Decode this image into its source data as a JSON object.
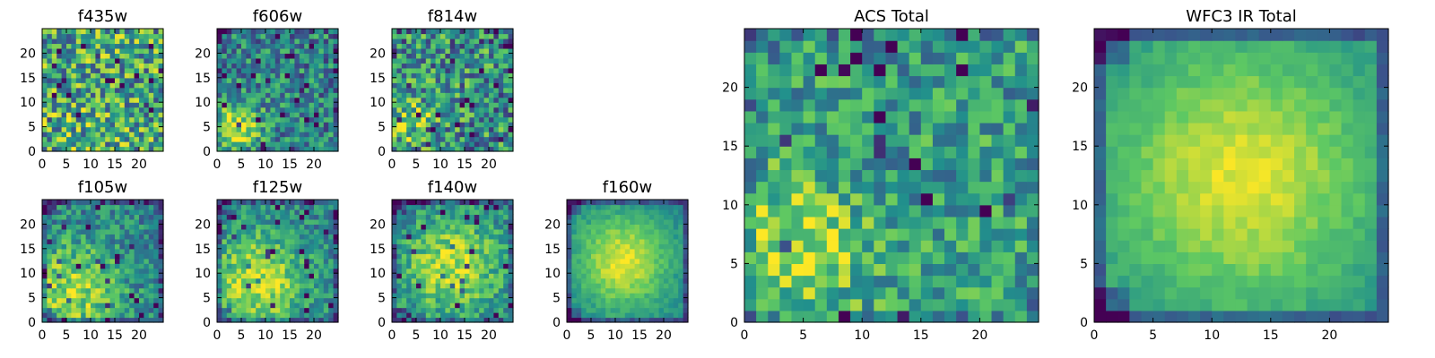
{
  "colormap": "viridis",
  "colors": {
    "viridis_stops": [
      "#440154",
      "#3b528b",
      "#21908c",
      "#5dc863",
      "#fde725"
    ]
  },
  "chart_data": [
    {
      "type": "heatmap",
      "title": "f435w",
      "grid_size": 25,
      "xticks": [
        0,
        5,
        10,
        15,
        20
      ],
      "yticks": [
        0,
        5,
        10,
        15,
        20
      ],
      "xlim": [
        0,
        25
      ],
      "ylim": [
        0,
        25
      ],
      "pattern": {
        "base": 0.6,
        "noise": 0.38,
        "peak_x": 5,
        "peak_y": 6,
        "peak_amp": 0.05,
        "peak_sigma": 5,
        "corner_dark": 0.0
      }
    },
    {
      "type": "heatmap",
      "title": "f606w",
      "grid_size": 25,
      "xticks": [
        0,
        5,
        10,
        15,
        20
      ],
      "yticks": [
        0,
        5,
        10,
        15,
        20
      ],
      "xlim": [
        0,
        25
      ],
      "ylim": [
        0,
        25
      ],
      "pattern": {
        "base": 0.45,
        "noise": 0.28,
        "peak_x": 3,
        "peak_y": 4,
        "peak_amp": 0.45,
        "peak_sigma": 4,
        "corner_dark": 0.2
      }
    },
    {
      "type": "heatmap",
      "title": "f814w",
      "grid_size": 25,
      "xticks": [
        0,
        5,
        10,
        15,
        20
      ],
      "yticks": [
        0,
        5,
        10,
        15,
        20
      ],
      "xlim": [
        0,
        25
      ],
      "ylim": [
        0,
        25
      ],
      "pattern": {
        "base": 0.5,
        "noise": 0.35,
        "peak_x": 3,
        "peak_y": 5,
        "peak_amp": 0.3,
        "peak_sigma": 4,
        "corner_dark": 0.1
      }
    },
    {
      "type": "heatmap",
      "title": "f105w",
      "grid_size": 25,
      "xticks": [
        0,
        5,
        10,
        15,
        20
      ],
      "yticks": [
        0,
        5,
        10,
        15,
        20
      ],
      "xlim": [
        0,
        25
      ],
      "ylim": [
        0,
        25
      ],
      "pattern": {
        "base": 0.45,
        "noise": 0.22,
        "peak_x": 6,
        "peak_y": 6,
        "peak_amp": 0.4,
        "peak_sigma": 7,
        "corner_dark": 0.35
      }
    },
    {
      "type": "heatmap",
      "title": "f125w",
      "grid_size": 25,
      "xticks": [
        0,
        5,
        10,
        15,
        20
      ],
      "yticks": [
        0,
        5,
        10,
        15,
        20
      ],
      "xlim": [
        0,
        25
      ],
      "ylim": [
        0,
        25
      ],
      "pattern": {
        "base": 0.45,
        "noise": 0.2,
        "peak_x": 8,
        "peak_y": 8,
        "peak_amp": 0.45,
        "peak_sigma": 7,
        "corner_dark": 0.35
      }
    },
    {
      "type": "heatmap",
      "title": "f140w",
      "grid_size": 25,
      "xticks": [
        0,
        5,
        10,
        15,
        20
      ],
      "yticks": [
        0,
        5,
        10,
        15,
        20
      ],
      "xlim": [
        0,
        25
      ],
      "ylim": [
        0,
        25
      ],
      "pattern": {
        "base": 0.45,
        "noise": 0.2,
        "peak_x": 12,
        "peak_y": 11,
        "peak_amp": 0.45,
        "peak_sigma": 7,
        "corner_dark": 0.4
      }
    },
    {
      "type": "heatmap",
      "title": "f160w",
      "grid_size": 25,
      "xticks": [
        0,
        5,
        10,
        15,
        20
      ],
      "yticks": [
        0,
        5,
        10,
        15,
        20
      ],
      "xlim": [
        0,
        25
      ],
      "ylim": [
        0,
        25
      ],
      "pattern": {
        "base": 0.45,
        "noise": 0.08,
        "peak_x": 11,
        "peak_y": 12,
        "peak_amp": 0.5,
        "peak_sigma": 7,
        "corner_dark": 0.45
      }
    },
    {
      "type": "heatmap",
      "title": "ACS Total",
      "grid_size": 25,
      "xticks": [
        0,
        5,
        10,
        15,
        20
      ],
      "yticks": [
        0,
        5,
        10,
        15,
        20
      ],
      "xlim": [
        0,
        25
      ],
      "ylim": [
        0,
        25
      ],
      "pattern": {
        "base": 0.55,
        "noise": 0.25,
        "peak_x": 4,
        "peak_y": 6,
        "peak_amp": 0.35,
        "peak_sigma": 4,
        "corner_dark": 0.15
      }
    },
    {
      "type": "heatmap",
      "title": "WFC3 IR Total",
      "grid_size": 25,
      "xticks": [
        0,
        5,
        10,
        15,
        20
      ],
      "yticks": [
        0,
        5,
        10,
        15,
        20
      ],
      "xlim": [
        0,
        25
      ],
      "ylim": [
        0,
        25
      ],
      "pattern": {
        "base": 0.5,
        "noise": 0.06,
        "peak_x": 12,
        "peak_y": 12,
        "peak_amp": 0.45,
        "peak_sigma": 8,
        "corner_dark": 0.5
      }
    }
  ]
}
